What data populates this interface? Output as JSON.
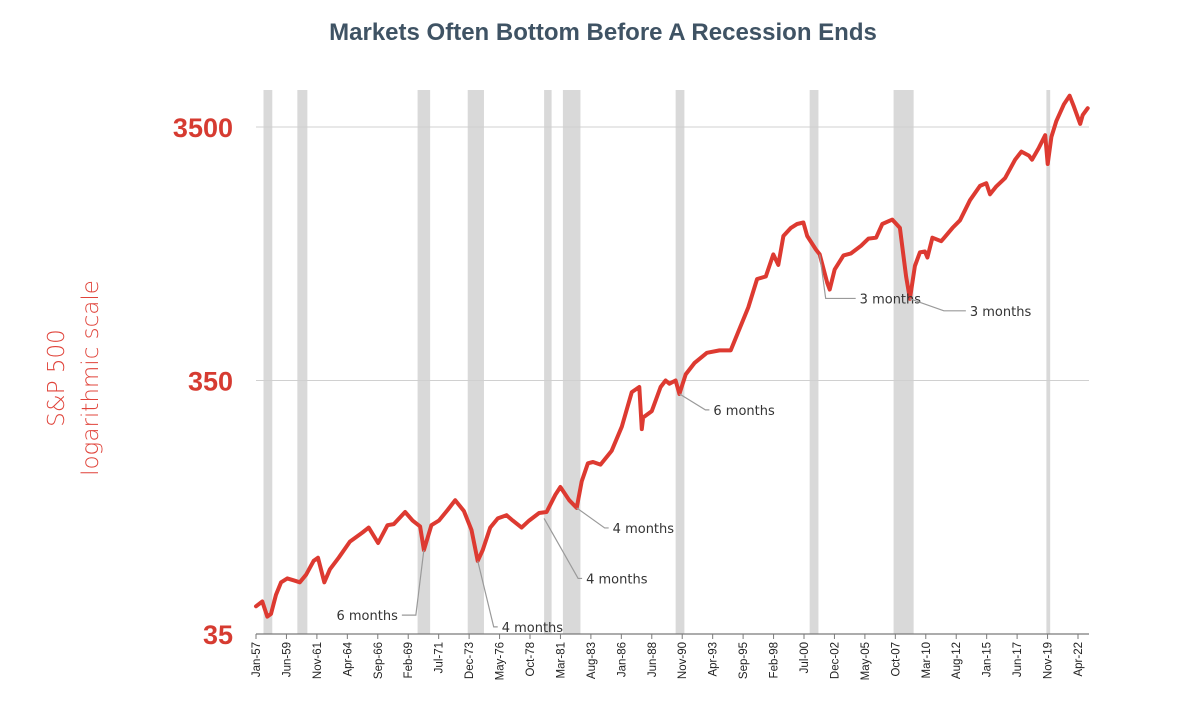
{
  "chart_data": {
    "type": "line",
    "title": "Markets Often Bottom Before A Recession Ends",
    "ylabel": [
      "S&P 500",
      "logarithmic scale"
    ],
    "y_scale": "log",
    "ylim": [
      35,
      5000
    ],
    "y_ticks": [
      {
        "value": 35,
        "label": "35"
      },
      {
        "value": 350,
        "label": "350"
      },
      {
        "value": 3500,
        "label": "3500"
      }
    ],
    "x_ticks": [
      "Jan-57",
      "Jun-59",
      "Nov-61",
      "Apr-64",
      "Sep-66",
      "Feb-69",
      "Jul-71",
      "Dec-73",
      "May-76",
      "Oct-78",
      "Mar-81",
      "Aug-83",
      "Jan-86",
      "Jun-88",
      "Nov-90",
      "Apr-93",
      "Sep-95",
      "Feb-98",
      "Jul-00",
      "Dec-02",
      "May-05",
      "Oct-07",
      "Mar-10",
      "Aug-12",
      "Jan-15",
      "Jun-17",
      "Nov-19",
      "Apr-22"
    ],
    "colors": {
      "line": "#dd3a31",
      "recession": "#d9d9d9",
      "gridline": "#d0d0d0",
      "annotation_line": "#9a9a9a"
    },
    "recessions": [
      {
        "start": 1957.6,
        "end": 1958.3
      },
      {
        "start": 1960.3,
        "end": 1961.1
      },
      {
        "start": 1969.9,
        "end": 1970.9
      },
      {
        "start": 1973.9,
        "end": 1975.2
      },
      {
        "start": 1980.0,
        "end": 1980.6
      },
      {
        "start": 1981.5,
        "end": 1982.9
      },
      {
        "start": 1990.5,
        "end": 1991.2
      },
      {
        "start": 2001.2,
        "end": 2001.9
      },
      {
        "start": 2007.9,
        "end": 2009.5
      },
      {
        "start": 2020.1,
        "end": 2020.4
      }
    ],
    "series": [
      {
        "x": [
          1957.0,
          1957.5,
          1957.9,
          1958.2,
          1958.6,
          1959.0,
          1959.5,
          1960.0,
          1960.5,
          1961.0,
          1961.6,
          1961.95,
          1962.45,
          1962.9,
          1963.6,
          1964.5,
          1965.5,
          1966.0,
          1966.75,
          1967.5,
          1968.0,
          1968.9,
          1969.5,
          1970.1,
          1970.4,
          1971.0,
          1971.6,
          1972.3,
          1972.9,
          1973.6,
          1974.2,
          1974.7,
          1975.1,
          1975.7,
          1976.3,
          1977.0,
          1977.5,
          1978.2,
          1978.8,
          1979.6,
          1980.2,
          1980.9,
          1981.3,
          1982.0,
          1982.6,
          1983.0,
          1983.5,
          1983.9,
          1984.5,
          1985.4,
          1986.2,
          1987.0,
          1987.6,
          1987.8,
          1987.9,
          1988.6,
          1989.3,
          1989.7,
          1990.0,
          1990.5,
          1990.8,
          1991.3,
          1992.0,
          1993.0,
          1994.0,
          1994.9,
          1995.5,
          1996.3,
          1997.0,
          1997.7,
          1998.3,
          1998.7,
          1999.1,
          1999.7,
          2000.2,
          2000.7,
          2001.0,
          2001.7,
          2002.0,
          2002.6,
          2002.8,
          2003.2,
          2003.9,
          2004.5,
          2005.3,
          2005.9,
          2006.5,
          2007.0,
          2007.8,
          2008.4,
          2008.9,
          2009.2,
          2009.6,
          2010.0,
          2010.4,
          2010.6,
          2011.0,
          2011.7,
          2012.0,
          2012.6,
          2013.2,
          2014.0,
          2014.8,
          2015.3,
          2015.6,
          2016.1,
          2016.8,
          2017.6,
          2018.1,
          2018.7,
          2018.95,
          2019.5,
          2020.0,
          2020.2,
          2020.5,
          2020.9,
          2021.5,
          2021.95,
          2022.3,
          2022.8,
          2023.0,
          2023.4
        ],
        "y": [
          45,
          47,
          41,
          42,
          50,
          56,
          58,
          57,
          56,
          60,
          68,
          70,
          56,
          63,
          70,
          81,
          88,
          92,
          80,
          94,
          95,
          106,
          98,
          93,
          75,
          94,
          98,
          108,
          118,
          107,
          90,
          68,
          75,
          92,
          100,
          103,
          98,
          92,
          98,
          105,
          106,
          124,
          133,
          118,
          110,
          140,
          165,
          167,
          163,
          185,
          230,
          315,
          330,
          225,
          250,
          265,
          330,
          350,
          340,
          350,
          310,
          370,
          410,
          450,
          460,
          460,
          545,
          680,
          880,
          900,
          1100,
          1000,
          1300,
          1400,
          1450,
          1470,
          1300,
          1150,
          1100,
          850,
          800,
          960,
          1090,
          1110,
          1190,
          1270,
          1280,
          1450,
          1510,
          1400,
          900,
          735,
          990,
          1120,
          1130,
          1070,
          1280,
          1240,
          1290,
          1400,
          1500,
          1800,
          2050,
          2100,
          1900,
          2040,
          2200,
          2600,
          2800,
          2700,
          2600,
          2900,
          3250,
          2500,
          3200,
          3700,
          4300,
          4650,
          4200,
          3600,
          3900,
          4150
        ]
      }
    ],
    "annotations": [
      {
        "label": "6 months",
        "x": 1970.4,
        "y": 75
      },
      {
        "label": "4 months",
        "x": 1974.7,
        "y": 68
      },
      {
        "label": "4 months",
        "x": 1980.0,
        "y": 100
      },
      {
        "label": "4 months",
        "x": 1982.6,
        "y": 110
      },
      {
        "label": "6 months",
        "x": 1990.8,
        "y": 310
      },
      {
        "label": "3 months",
        "x": 2002.0,
        "y": 1100
      },
      {
        "label": "3 months",
        "x": 2009.2,
        "y": 735
      }
    ]
  }
}
